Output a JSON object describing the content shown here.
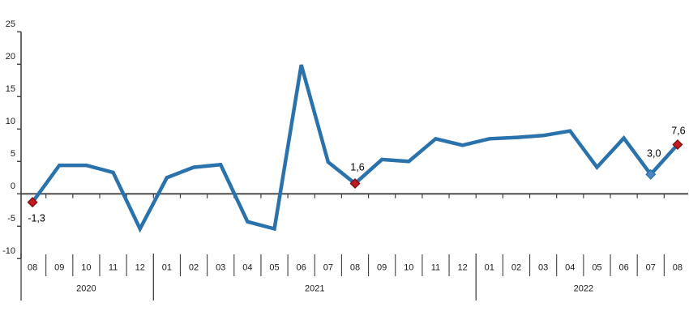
{
  "chart_data": {
    "type": "line",
    "title": "",
    "xlabel": "",
    "ylabel": "",
    "grid": false,
    "legend": "none",
    "ylim": [
      -10,
      25
    ],
    "y_ticks": [
      "25",
      "20",
      "15",
      "10",
      "5",
      "0",
      "-5",
      "-10"
    ],
    "categories": [
      "08",
      "09",
      "10",
      "11",
      "12",
      "01",
      "02",
      "03",
      "04",
      "05",
      "06",
      "07",
      "08",
      "09",
      "10",
      "11",
      "12",
      "01",
      "02",
      "03",
      "04",
      "05",
      "06",
      "07",
      "08"
    ],
    "year_groups": [
      {
        "label": "2020",
        "months": 5
      },
      {
        "label": "2021",
        "months": 12
      },
      {
        "label": "2022",
        "months": 8
      }
    ],
    "values": [
      -1.3,
      4.4,
      4.4,
      3.3,
      -5.4,
      2.5,
      4.1,
      4.5,
      -4.3,
      -5.4,
      19.9,
      4.9,
      1.6,
      5.3,
      5.0,
      8.5,
      7.5,
      8.5,
      8.7,
      9.0,
      9.7,
      4.1,
      8.6,
      3.0,
      7.6
    ],
    "point_labels": [
      {
        "index": 0,
        "text": "-1,3"
      },
      {
        "index": 12,
        "text": "1,6"
      },
      {
        "index": 23,
        "text": "3,0"
      },
      {
        "index": 24,
        "text": "7,6"
      }
    ],
    "markers": [
      {
        "index": 0,
        "color_key": "marker_red"
      },
      {
        "index": 12,
        "color_key": "marker_red"
      },
      {
        "index": 23,
        "color_key": "marker_blue"
      },
      {
        "index": 24,
        "color_key": "marker_red"
      }
    ],
    "colors": {
      "line": "#2A72AC",
      "marker_red": "#C01B1F",
      "marker_red_border": "#7E1013",
      "marker_blue": "#4D87C3",
      "marker_blue_border": "#2A72AC",
      "axis": "#404040",
      "text": "#1a1a1a"
    }
  }
}
